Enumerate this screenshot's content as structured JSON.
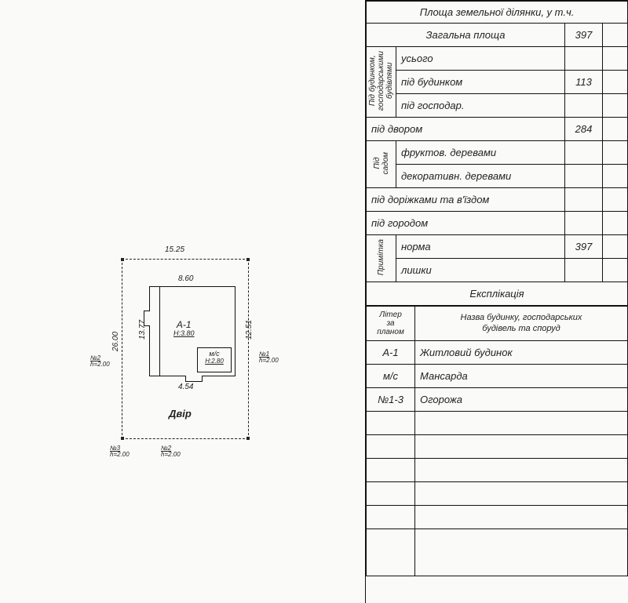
{
  "plan": {
    "dims": {
      "plot_width": "15.25",
      "plot_height": "26.00",
      "bldg_width": "8.60",
      "bldg_left": "13.77",
      "bldg_right": "12.51",
      "bldg_bottom": "4.54"
    },
    "a1_label": "A-1",
    "a1_h": "H:3.80",
    "mc_label": "м/с",
    "mc_h": "H:2.80",
    "dvir": "Двір",
    "fences": {
      "n1": "№1",
      "n2": "№2",
      "n3": "№3",
      "h1": "h=2.00",
      "h2": "h=2.00",
      "h3": "h=2.00",
      "h4": "h=2.00"
    }
  },
  "table": {
    "title": "Площа земельної ділянки, у т.ч.",
    "rows": {
      "total_area": {
        "label": "Загальна площа",
        "value": "397"
      },
      "pid_bud_group": "Під будинком,\nгосподарськими\nбудівлями",
      "usogo": "усього",
      "pid_budynkom": {
        "label": "під будинком",
        "value": "113"
      },
      "pid_gospodar": "під господар.",
      "pid_dvorom": {
        "label": "під двором",
        "value": "284"
      },
      "pid_sadom": "Під\nсадом",
      "fruktov": "фруктов. деревами",
      "dekorat": "декоративн. деревами",
      "dorizhky": "під доріжками та в'їздом",
      "gorodom": "під городом",
      "prymitka": "Примітка",
      "norma": {
        "label": "норма",
        "value": "397"
      },
      "lyshky": "лишки"
    },
    "eksplikatsia": "Експлікація",
    "exp_header": {
      "c1": "Літер\nза\nпланом",
      "c2": "Назва будинку, господарських\nбудівель та споруд"
    },
    "exp_rows": [
      {
        "liter": "А-1",
        "name": "Житловий будинок"
      },
      {
        "liter": "м/с",
        "name": "Мансарда"
      },
      {
        "liter": "№1-3",
        "name": "Огорожа"
      }
    ]
  },
  "colors": {
    "line": "#111111",
    "bg": "#fafaf8",
    "text": "#222222"
  }
}
